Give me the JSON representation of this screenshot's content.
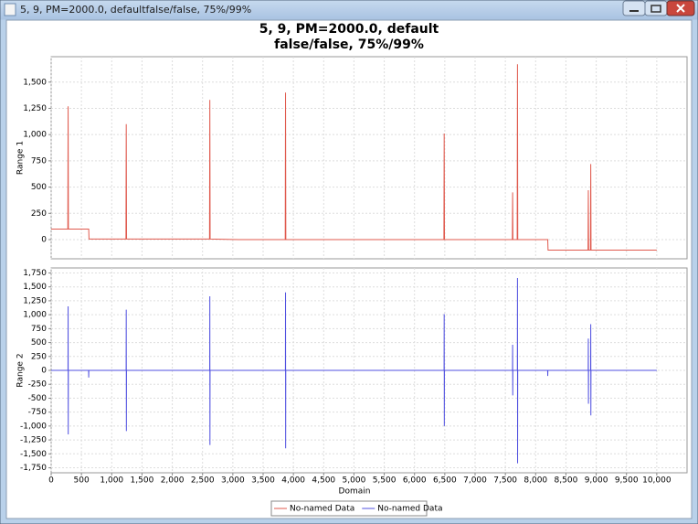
{
  "window_title": "5, 9, PM=2000.0, defaultfalse/false, 75%/99%",
  "chart_data": {
    "type": "line",
    "title_lines": [
      "5, 9, PM=2000.0, default",
      "false/false, 75%/99%"
    ],
    "x_label": "Domain",
    "xlim": [
      0,
      10500
    ],
    "xticks": [
      0,
      500,
      {
        "value": 1000,
        "label": "1,000"
      },
      {
        "value": 1500,
        "label": "1,500"
      },
      {
        "value": 2000,
        "label": "2,000"
      },
      {
        "value": 2500,
        "label": "2,500"
      },
      {
        "value": 3000,
        "label": "3,000"
      },
      {
        "value": 3500,
        "label": "3,500"
      },
      {
        "value": 4000,
        "label": "4,000"
      },
      {
        "value": 4500,
        "label": "4,500"
      },
      {
        "value": 5000,
        "label": "5,000"
      },
      {
        "value": 5500,
        "label": "5,500"
      },
      {
        "value": 6000,
        "label": "6,000"
      },
      {
        "value": 6500,
        "label": "6,500"
      },
      {
        "value": 7000,
        "label": "7,000"
      },
      {
        "value": 7500,
        "label": "7,500"
      },
      {
        "value": 8000,
        "label": "8,000"
      },
      {
        "value": 8500,
        "label": "8,500"
      },
      {
        "value": 9000,
        "label": "9,000"
      },
      {
        "value": 9500,
        "label": "9,500"
      },
      {
        "value": 10000,
        "label": "10,000"
      }
    ],
    "grid": true,
    "subplots": [
      {
        "y_label": "Range 1",
        "ylim": [
          -183,
          1742
        ],
        "yticks": [
          0,
          250,
          500,
          750,
          {
            "value": 1000,
            "label": "1,000"
          },
          {
            "value": 1250,
            "label": "1,250"
          },
          {
            "value": 1500,
            "label": "1,500"
          }
        ],
        "series": [
          {
            "name": "No-named Data",
            "color": "#e05a4e",
            "x": [
              0,
              275,
              280,
              285,
              620,
              625,
              1235,
              1240,
              1245,
              2615,
              2620,
              2625,
              3100,
              3865,
              3870,
              3875,
              6485,
              6490,
              6495,
              7615,
              7620,
              7625,
              7695,
              7700,
              7705,
              8200,
              8205,
              8865,
              8870,
              8875,
              8905,
              8910,
              8915,
              10000
            ],
            "values": [
              100,
              100,
              1270,
              100,
              100,
              5,
              5,
              1100,
              5,
              5,
              1330,
              5,
              0,
              0,
              1400,
              0,
              0,
              1010,
              0,
              0,
              450,
              0,
              0,
              1670,
              0,
              0,
              -100,
              -100,
              470,
              -100,
              -100,
              720,
              -100,
              -100
            ]
          }
        ]
      },
      {
        "y_label": "Range 2",
        "ylim": [
          -1840,
          1840
        ],
        "yticks": [
          {
            "value": -1750,
            "label": "-1,750"
          },
          {
            "value": -1500,
            "label": "-1,500"
          },
          {
            "value": -1250,
            "label": "-1,250"
          },
          {
            "value": -1000,
            "label": "-1,000"
          },
          -750,
          -500,
          -250,
          0,
          250,
          500,
          750,
          {
            "value": 1000,
            "label": "1,000"
          },
          {
            "value": 1250,
            "label": "1,250"
          },
          {
            "value": 1500,
            "label": "1,500"
          },
          {
            "value": 1750,
            "label": "1,750"
          }
        ],
        "series": [
          {
            "name": "No-named Data",
            "color": "#5050e0",
            "x": [
              0,
              278,
              280,
              282,
              284,
              618,
              620,
              622,
              1238,
              1240,
              1242,
              1244,
              2618,
              2620,
              2622,
              2624,
              3868,
              3870,
              3872,
              3874,
              6488,
              6490,
              6492,
              6494,
              7618,
              7620,
              7622,
              7624,
              7698,
              7700,
              7702,
              7704,
              8198,
              8200,
              8202,
              8868,
              8870,
              8872,
              8874,
              8908,
              8910,
              8912,
              8914,
              10000
            ],
            "values": [
              0,
              0,
              1150,
              -1150,
              0,
              0,
              -130,
              0,
              0,
              1090,
              -1090,
              0,
              0,
              1330,
              -1340,
              0,
              0,
              1400,
              -1400,
              0,
              0,
              1010,
              -1000,
              0,
              0,
              460,
              -450,
              0,
              0,
              1660,
              -1670,
              0,
              0,
              -100,
              0,
              0,
              570,
              -600,
              0,
              0,
              830,
              -810,
              0,
              0
            ]
          }
        ]
      }
    ]
  }
}
